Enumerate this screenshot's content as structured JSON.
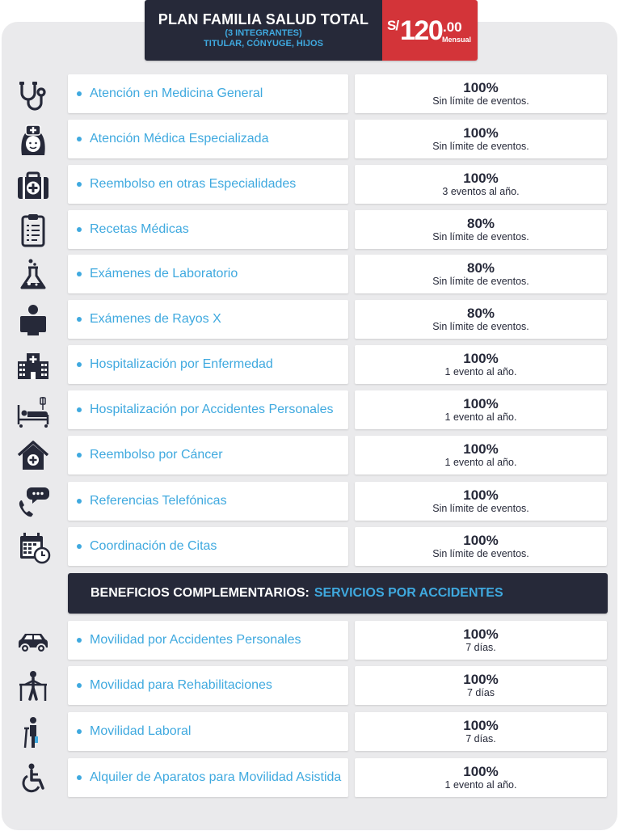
{
  "header": {
    "title": "PLAN FAMILIA SALUD TOTAL",
    "members": "(3 INTEGRANTES)",
    "holders": "TITULAR, CÓNYUGE, HIJOS",
    "price_currency": "S/",
    "price_integer": "120",
    "price_decimal": ".00",
    "price_period": "Mensual"
  },
  "benefits": [
    {
      "icon": "stethoscope-icon",
      "label": "Atención en Medicina General",
      "coverage": "100%",
      "limit": "Sin límite de eventos."
    },
    {
      "icon": "nurse-icon",
      "label": "Atención Médica Especializada",
      "coverage": "100%",
      "limit": "Sin límite de eventos."
    },
    {
      "icon": "medical-kit-icon",
      "label": "Reembolso en otras Especialidades",
      "coverage": "100%",
      "limit": "3 eventos al año."
    },
    {
      "icon": "prescription-clipboard-icon",
      "label": "Recetas Médicas",
      "coverage": "80%",
      "limit": "Sin límite de eventos."
    },
    {
      "icon": "lab-flask-icon",
      "label": "Exámenes de Laboratorio",
      "coverage": "80%",
      "limit": "Sin límite de eventos."
    },
    {
      "icon": "xray-icon",
      "label": "Exámenes de Rayos X",
      "coverage": "80%",
      "limit": "Sin límite de eventos."
    },
    {
      "icon": "hospital-icon",
      "label": "Hospitalización por Enfermedad",
      "coverage": "100%",
      "limit": "1 evento al año."
    },
    {
      "icon": "hospital-bed-icon",
      "label": "Hospitalización por Accidentes Personales",
      "coverage": "100%",
      "limit": "1 evento al año."
    },
    {
      "icon": "home-medical-icon",
      "label": "Reembolso por Cáncer",
      "coverage": "100%",
      "limit": "1 evento al año."
    },
    {
      "icon": "phone-chat-icon",
      "label": "Referencias Telefónicas",
      "coverage": "100%",
      "limit": "Sin límite de eventos."
    },
    {
      "icon": "calendar-clock-icon",
      "label": "Coordinación de Citas",
      "coverage": "100%",
      "limit": "Sin límite de eventos."
    }
  ],
  "complementary": {
    "heading_a": "BENEFICIOS COMPLEMENTARIOS:",
    "heading_b": "SERVICIOS POR ACCIDENTES",
    "items": [
      {
        "icon": "car-icon",
        "label": "Movilidad por Accidentes Personales",
        "coverage": "100%",
        "limit": "7 días."
      },
      {
        "icon": "walker-icon",
        "label": "Movilidad para Rehabilitaciones",
        "coverage": "100%",
        "limit": "7 días"
      },
      {
        "icon": "crutch-person-icon",
        "label": "Movilidad Laboral",
        "coverage": "100%",
        "limit": "7 días."
      },
      {
        "icon": "wheelchair-icon",
        "label": "Alquiler de Aparatos para Movilidad Asistida",
        "coverage": "100%",
        "limit": "1 evento al año."
      }
    ]
  },
  "colors": {
    "dark": "#262939",
    "accent": "#3fa9df",
    "price": "#d33439",
    "panel": "#eaeaec",
    "icon": "#262939"
  }
}
